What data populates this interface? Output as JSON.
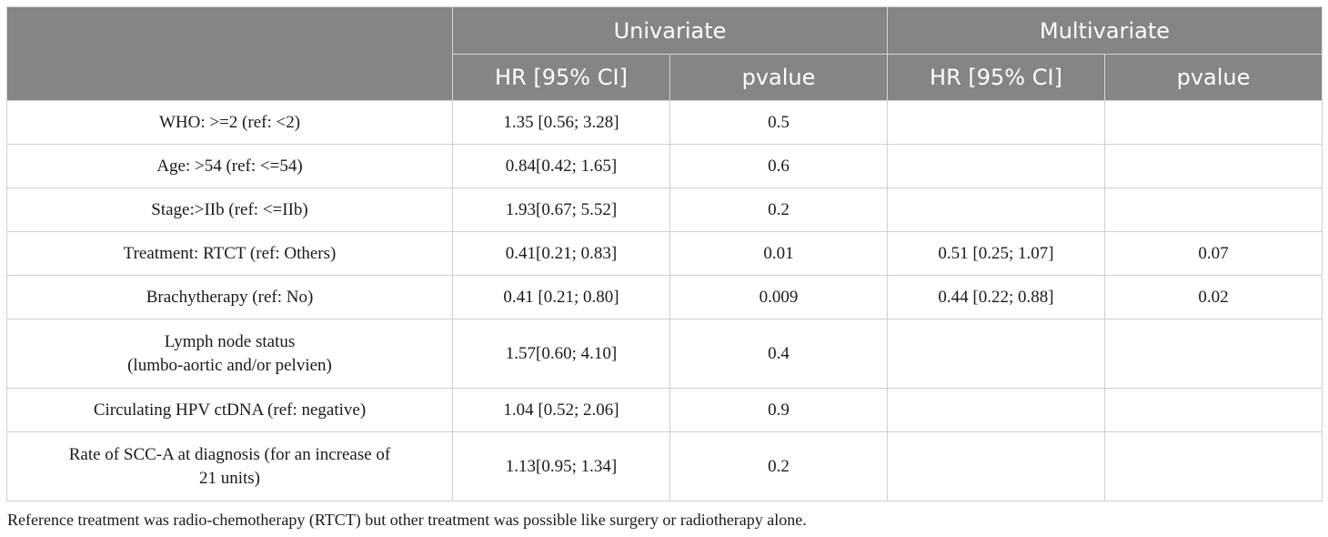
{
  "table": {
    "group_headers": [
      "",
      "Univariate",
      "Multivariate"
    ],
    "sub_headers": [
      "HR [95% CI]",
      "pvalue",
      "HR [95% CI]",
      "pvalue"
    ],
    "rows": [
      {
        "label": "WHO: >=2 (ref: <2)",
        "uni_hr": "1.35 [0.56; 3.28]",
        "uni_p": "0.5",
        "multi_hr": "",
        "multi_p": ""
      },
      {
        "label": "Age: >54 (ref: <=54)",
        "uni_hr": "0.84[0.42; 1.65]",
        "uni_p": "0.6",
        "multi_hr": "",
        "multi_p": ""
      },
      {
        "label": "Stage:>IIb (ref: <=IIb)",
        "uni_hr": "1.93[0.67; 5.52]",
        "uni_p": "0.2",
        "multi_hr": "",
        "multi_p": ""
      },
      {
        "label": "Treatment: RTCT (ref: Others)",
        "uni_hr": "0.41[0.21; 0.83]",
        "uni_p": "0.01",
        "multi_hr": "0.51 [0.25; 1.07]",
        "multi_p": "0.07"
      },
      {
        "label": "Brachytherapy (ref: No)",
        "uni_hr": "0.41 [0.21; 0.80]",
        "uni_p": "0.009",
        "multi_hr": "0.44 [0.22; 0.88]",
        "multi_p": "0.02"
      },
      {
        "label_line1": "Lymph node status",
        "label_line2": "(lumbo-aortic and/or pelvien)",
        "uni_hr": "1.57[0.60; 4.10]",
        "uni_p": "0.4",
        "multi_hr": "",
        "multi_p": ""
      },
      {
        "label": "Circulating HPV ctDNA (ref: negative)",
        "uni_hr": "1.04 [0.52; 2.06]",
        "uni_p": "0.9",
        "multi_hr": "",
        "multi_p": ""
      },
      {
        "label_line1": "Rate of SCC-A at diagnosis (for an increase of",
        "label_line2": "21 units)",
        "uni_hr": "1.13[0.95; 1.34]",
        "uni_p": "0.2",
        "multi_hr": "",
        "multi_p": ""
      }
    ]
  },
  "footnote": "Reference treatment was radio-chemotherapy (RTCT) but other treatment was possible like surgery or radiotherapy alone."
}
